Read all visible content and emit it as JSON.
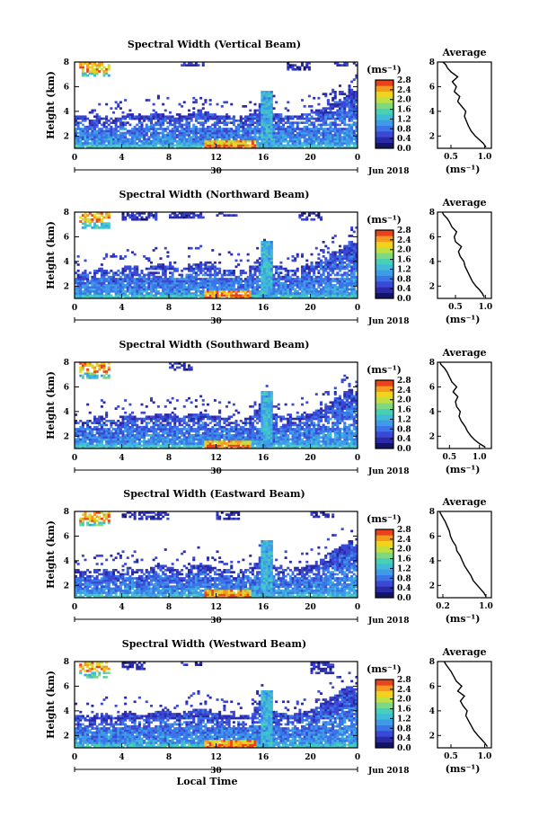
{
  "chart_data": [
    {
      "type": "heatmap",
      "title": "Spectral Width (Vertical Beam)",
      "ylabel": "Height (km)",
      "xlabel": "",
      "date_label": "30",
      "month_label": "Jun 2018",
      "x_ticks": [
        "0",
        "4",
        "8",
        "12",
        "16",
        "20",
        "0"
      ],
      "y_ticks": [
        "2",
        "4",
        "6",
        "8"
      ],
      "ylim": [
        1,
        8
      ],
      "colorbar": {
        "unit": "(ms⁻¹)",
        "ticks": [
          "0.0",
          "0.4",
          "0.8",
          "1.2",
          "1.6",
          "2.0",
          "2.4",
          "2.8"
        ]
      },
      "average": {
        "title": "Average",
        "xlabel": "(ms⁻¹)",
        "x_ticks": [
          "0.5",
          "1.0"
        ],
        "xlim": [
          0.3,
          1.1
        ],
        "y_ticks": [
          "2",
          "4",
          "6",
          "8"
        ],
        "ylim": [
          1,
          8
        ],
        "x": [
          1.02,
          0.98,
          0.92,
          0.86,
          0.8,
          0.76,
          0.73,
          0.7,
          0.72,
          0.66,
          0.6,
          0.63,
          0.55,
          0.58,
          0.52,
          0.6,
          0.5,
          0.45,
          0.42,
          0.38
        ],
        "y": [
          1.1,
          1.4,
          1.7,
          2.0,
          2.4,
          2.8,
          3.2,
          3.6,
          4.0,
          4.4,
          4.8,
          5.2,
          5.6,
          6.0,
          6.4,
          6.8,
          7.2,
          7.5,
          7.8,
          8.0
        ]
      },
      "heat": {
        "low_top": [
          3.6,
          3.6,
          3.5,
          3.4,
          3.6,
          3.7,
          3.6,
          3.5,
          3.4,
          3.5,
          3.7,
          3.8,
          3.7,
          3.6,
          3.6,
          3.7,
          3.8,
          3.9,
          3.8,
          3.7,
          3.6,
          3.5,
          3.6,
          3.7,
          3.9,
          4.0,
          4.1,
          4.0,
          3.9,
          3.8,
          3.7,
          3.6,
          3.6,
          3.5,
          3.4,
          3.5,
          3.6,
          3.8,
          4.2,
          4.6,
          5.0,
          4.2,
          3.9,
          3.8,
          3.7,
          3.6,
          3.6,
          3.7,
          3.8,
          3.9,
          4.0,
          4.1,
          4.2,
          4.4,
          4.6,
          4.8,
          5.0,
          5.4,
          5.8,
          5.6
        ],
        "hot_start": 11,
        "hot_end": 15.5,
        "plume_time": 16.3,
        "upper_patches": [
          [
            0.5,
            3,
            6.8,
            8
          ],
          [
            1,
            2,
            7,
            8
          ],
          [
            9,
            11,
            7.6,
            8
          ],
          [
            18,
            20,
            7.4,
            8
          ],
          [
            22,
            24,
            7.6,
            8
          ]
        ]
      }
    },
    {
      "type": "heatmap",
      "title": "Spectral Width (Northward Beam)",
      "ylabel": "Height (km)",
      "xlabel": "",
      "date_label": "30",
      "month_label": "Jun 2018",
      "x_ticks": [
        "0",
        "4",
        "8",
        "12",
        "16",
        "20",
        "0"
      ],
      "y_ticks": [
        "2",
        "4",
        "6",
        "8"
      ],
      "ylim": [
        1,
        8
      ],
      "colorbar": {
        "unit": "(ms⁻¹)",
        "ticks": [
          "0.0",
          "0.4",
          "0.8",
          "1.2",
          "1.6",
          "2.0",
          "2.4",
          "2.8"
        ]
      },
      "average": {
        "title": "Average",
        "xlabel": "(ms⁻¹)",
        "x_ticks": [
          "0.5",
          "1.0"
        ],
        "xlim": [
          0.2,
          1.1
        ],
        "y_ticks": [
          "2",
          "4",
          "6",
          "8"
        ],
        "ylim": [
          1,
          8
        ],
        "x": [
          0.98,
          0.95,
          0.9,
          0.84,
          0.78,
          0.74,
          0.7,
          0.66,
          0.64,
          0.58,
          0.55,
          0.6,
          0.5,
          0.48,
          0.52,
          0.44,
          0.4,
          0.36,
          0.3,
          0.28
        ],
        "y": [
          1.1,
          1.4,
          1.7,
          2.0,
          2.4,
          2.8,
          3.2,
          3.6,
          4.0,
          4.4,
          4.8,
          5.2,
          5.6,
          6.0,
          6.4,
          6.8,
          7.2,
          7.5,
          7.8,
          8.0
        ]
      },
      "heat": {
        "low_top": [
          3.3,
          3.2,
          3.3,
          3.2,
          3.4,
          3.5,
          3.4,
          3.3,
          3.2,
          3.3,
          3.5,
          3.6,
          3.5,
          3.4,
          3.4,
          3.5,
          3.6,
          3.7,
          3.8,
          3.7,
          3.6,
          3.5,
          3.4,
          3.5,
          3.7,
          3.8,
          3.9,
          3.8,
          3.7,
          3.6,
          3.5,
          3.4,
          3.4,
          3.3,
          3.2,
          3.3,
          3.4,
          3.6,
          4.0,
          4.4,
          4.8,
          4.0,
          3.7,
          3.6,
          3.5,
          3.4,
          3.4,
          3.5,
          3.6,
          3.7,
          3.8,
          4.0,
          4.2,
          4.4,
          4.6,
          4.8,
          5.0,
          5.4,
          5.6,
          5.5
        ],
        "hot_start": 11,
        "hot_end": 15,
        "plume_time": 16.3,
        "upper_patches": [
          [
            0.5,
            3,
            6.6,
            8
          ],
          [
            4,
            7,
            7.4,
            8
          ],
          [
            8,
            11,
            7.5,
            8
          ],
          [
            12,
            14,
            7.6,
            8
          ],
          [
            19,
            21,
            7.4,
            8
          ]
        ]
      }
    },
    {
      "type": "heatmap",
      "title": "Spectral Width (Southward Beam)",
      "ylabel": "Height (km)",
      "xlabel": "",
      "date_label": "30",
      "month_label": "Jun 2018",
      "x_ticks": [
        "0",
        "4",
        "8",
        "12",
        "16",
        "20",
        "0"
      ],
      "y_ticks": [
        "2",
        "4",
        "6",
        "8"
      ],
      "ylim": [
        1,
        8
      ],
      "colorbar": {
        "unit": "(ms⁻¹)",
        "ticks": [
          "0.0",
          "0.4",
          "0.8",
          "1.2",
          "1.6",
          "2.0",
          "2.4",
          "2.8"
        ]
      },
      "average": {
        "title": "Average",
        "xlabel": "(ms⁻¹)",
        "x_ticks": [
          "0.5",
          "1.0"
        ],
        "xlim": [
          0.3,
          1.2
        ],
        "y_ticks": [
          "2",
          "4",
          "6",
          "8"
        ],
        "ylim": [
          1,
          8
        ],
        "x": [
          1.1,
          1.0,
          0.92,
          0.86,
          0.8,
          0.76,
          0.7,
          0.66,
          0.68,
          0.62,
          0.6,
          0.64,
          0.56,
          0.62,
          0.54,
          0.5,
          0.46,
          0.42,
          0.36,
          0.34
        ],
        "y": [
          1.1,
          1.4,
          1.7,
          2.0,
          2.4,
          2.8,
          3.2,
          3.6,
          4.0,
          4.4,
          4.8,
          5.2,
          5.6,
          6.0,
          6.4,
          6.8,
          7.2,
          7.5,
          7.8,
          8.0
        ]
      },
      "heat": {
        "low_top": [
          3.4,
          3.4,
          3.3,
          3.3,
          3.5,
          3.6,
          3.5,
          3.4,
          3.3,
          3.4,
          3.6,
          3.7,
          3.6,
          3.5,
          3.5,
          3.6,
          3.7,
          3.8,
          3.9,
          3.8,
          3.7,
          3.6,
          3.5,
          3.6,
          3.8,
          3.9,
          4.0,
          3.9,
          3.8,
          3.7,
          3.6,
          3.5,
          3.5,
          3.4,
          3.3,
          3.4,
          3.5,
          3.7,
          4.1,
          4.5,
          4.9,
          4.1,
          3.8,
          3.7,
          3.6,
          3.5,
          3.5,
          3.6,
          3.7,
          3.8,
          3.9,
          4.1,
          4.3,
          4.6,
          4.9,
          5.2,
          5.4,
          5.6,
          5.8,
          5.6
        ],
        "hot_start": 11,
        "hot_end": 15,
        "plume_time": 16.3,
        "upper_patches": [
          [
            0.5,
            3,
            6.6,
            8
          ],
          [
            8,
            10,
            7.4,
            8
          ]
        ]
      }
    },
    {
      "type": "heatmap",
      "title": "Spectral Width (Eastward Beam)",
      "ylabel": "Height (km)",
      "xlabel": "",
      "date_label": "30",
      "month_label": "Jun 2018",
      "x_ticks": [
        "0",
        "4",
        "8",
        "12",
        "16",
        "20",
        "0"
      ],
      "y_ticks": [
        "2",
        "4",
        "6",
        "8"
      ],
      "ylim": [
        1,
        8
      ],
      "colorbar": {
        "unit": "(ms⁻¹)",
        "ticks": [
          "0.0",
          "0.4",
          "0.8",
          "1.2",
          "1.6",
          "2.0",
          "2.4",
          "2.8"
        ]
      },
      "average": {
        "title": "Average",
        "xlabel": "(ms⁻¹)",
        "x_ticks": [
          "0.2",
          "1.0"
        ],
        "xlim": [
          0.1,
          1.1
        ],
        "y_ticks": [
          "2",
          "4",
          "6",
          "8"
        ],
        "ylim": [
          1,
          8
        ],
        "x": [
          1.0,
          0.96,
          0.9,
          0.84,
          0.76,
          0.72,
          0.66,
          0.6,
          0.56,
          0.52,
          0.46,
          0.44,
          0.38,
          0.34,
          0.32,
          0.28,
          0.24,
          0.2,
          0.16,
          0.14
        ],
        "y": [
          1.1,
          1.4,
          1.7,
          2.0,
          2.4,
          2.8,
          3.2,
          3.6,
          4.0,
          4.4,
          4.8,
          5.2,
          5.6,
          6.0,
          6.4,
          6.8,
          7.2,
          7.5,
          7.8,
          8.0
        ]
      },
      "heat": {
        "low_top": [
          3.2,
          3.2,
          3.1,
          3.1,
          3.3,
          3.4,
          3.3,
          3.2,
          3.1,
          3.2,
          3.4,
          3.5,
          3.4,
          3.3,
          3.3,
          3.4,
          3.5,
          3.6,
          3.7,
          3.6,
          3.5,
          3.4,
          3.3,
          3.4,
          3.6,
          3.7,
          3.8,
          3.7,
          3.6,
          3.5,
          3.4,
          3.3,
          3.3,
          3.2,
          3.1,
          3.2,
          3.3,
          3.5,
          3.9,
          4.3,
          4.7,
          3.9,
          3.6,
          3.5,
          3.4,
          3.3,
          3.3,
          3.4,
          3.5,
          3.6,
          3.7,
          3.9,
          4.1,
          4.4,
          4.7,
          5.0,
          5.2,
          5.4,
          5.6,
          5.4
        ],
        "hot_start": 11,
        "hot_end": 15,
        "plume_time": 16.3,
        "upper_patches": [
          [
            0.5,
            3,
            6.8,
            8
          ],
          [
            4,
            8,
            7.3,
            8
          ],
          [
            12,
            14,
            7.4,
            8
          ],
          [
            20,
            22,
            7.5,
            8
          ]
        ]
      }
    },
    {
      "type": "heatmap",
      "title": "Spectral Width (Westward Beam)",
      "ylabel": "Height (km)",
      "xlabel": "Local Time",
      "date_label": "30",
      "month_label": "Jun 2018",
      "x_ticks": [
        "0",
        "4",
        "8",
        "12",
        "16",
        "20",
        "0"
      ],
      "y_ticks": [
        "2",
        "4",
        "6",
        "8"
      ],
      "ylim": [
        1,
        8
      ],
      "colorbar": {
        "unit": "(ms⁻¹)",
        "ticks": [
          "0.0",
          "0.4",
          "0.8",
          "1.2",
          "1.6",
          "2.0",
          "2.4",
          "2.8"
        ]
      },
      "average": {
        "title": "Average",
        "xlabel": "(ms⁻¹)",
        "x_ticks": [
          "0.5",
          "1.0"
        ],
        "xlim": [
          0.3,
          1.1
        ],
        "y_ticks": [
          "2",
          "4",
          "6",
          "8"
        ],
        "ylim": [
          1,
          8
        ],
        "x": [
          1.04,
          1.0,
          0.95,
          0.9,
          0.84,
          0.8,
          0.76,
          0.72,
          0.74,
          0.68,
          0.64,
          0.7,
          0.6,
          0.66,
          0.58,
          0.54,
          0.5,
          0.46,
          0.42,
          0.4
        ],
        "y": [
          1.1,
          1.4,
          1.7,
          2.0,
          2.4,
          2.8,
          3.2,
          3.6,
          4.0,
          4.4,
          4.8,
          5.2,
          5.6,
          6.0,
          6.4,
          6.8,
          7.2,
          7.5,
          7.8,
          8.0
        ]
      },
      "heat": {
        "low_top": [
          3.6,
          3.6,
          3.5,
          3.5,
          3.7,
          3.8,
          3.7,
          3.6,
          3.5,
          3.6,
          3.8,
          3.9,
          3.8,
          3.7,
          3.7,
          3.8,
          3.9,
          4.0,
          4.1,
          4.0,
          3.9,
          3.8,
          3.7,
          3.8,
          4.0,
          4.1,
          4.2,
          4.1,
          4.0,
          3.9,
          3.8,
          3.7,
          3.7,
          3.6,
          3.5,
          3.6,
          3.7,
          3.9,
          4.3,
          4.7,
          5.1,
          4.3,
          4.0,
          3.9,
          3.8,
          3.7,
          3.7,
          3.8,
          3.9,
          4.0,
          4.1,
          4.3,
          4.5,
          4.8,
          5.1,
          5.4,
          5.6,
          5.8,
          6.0,
          5.8
        ],
        "hot_start": 11,
        "hot_end": 15.5,
        "plume_time": 16.3,
        "upper_patches": [
          [
            0.5,
            3,
            6.6,
            8
          ],
          [
            4,
            6,
            7.4,
            8
          ],
          [
            9,
            11,
            7.6,
            8
          ],
          [
            20,
            22,
            7.0,
            8
          ]
        ]
      }
    }
  ]
}
